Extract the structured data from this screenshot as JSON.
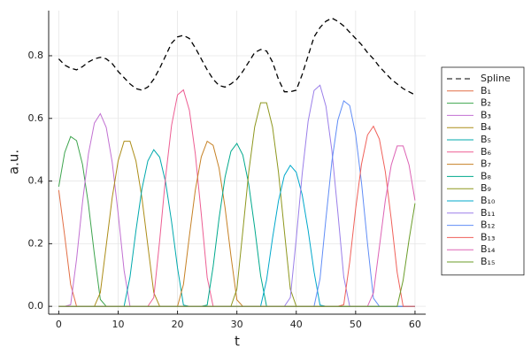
{
  "chart_data": {
    "type": "line",
    "xlabel": "t",
    "ylabel": "a.u.",
    "x": [
      0,
      1,
      2,
      3,
      4,
      5,
      6,
      7,
      8,
      9,
      10,
      11,
      12,
      13,
      14,
      15,
      16,
      17,
      18,
      19,
      20,
      21,
      22,
      23,
      24,
      25,
      26,
      27,
      28,
      29,
      30,
      31,
      32,
      33,
      34,
      35,
      36,
      37,
      38,
      39,
      40,
      41,
      42,
      43,
      44,
      45,
      46,
      47,
      48,
      49,
      50,
      51,
      52,
      53,
      54,
      55,
      56,
      57,
      58,
      59,
      60
    ],
    "xlim": [
      -1.7,
      61.8
    ],
    "xticks": [
      0,
      10,
      20,
      30,
      40,
      50,
      60
    ],
    "ylim": [
      -0.025,
      0.944
    ],
    "yticks": [
      {
        "value": 0,
        "label": "0.0"
      },
      0.2,
      0.4,
      0.6,
      0.8
    ],
    "grid": true,
    "legend": "right",
    "series": [
      {
        "name": "Spline",
        "color": "#000000",
        "style": "dashed",
        "values": [
          0.79,
          0.77,
          0.76,
          0.755,
          0.765,
          0.78,
          0.79,
          0.795,
          0.79,
          0.775,
          0.75,
          0.73,
          0.71,
          0.695,
          0.69,
          0.7,
          0.725,
          0.76,
          0.8,
          0.84,
          0.86,
          0.865,
          0.855,
          0.825,
          0.79,
          0.755,
          0.725,
          0.705,
          0.7,
          0.71,
          0.725,
          0.75,
          0.78,
          0.81,
          0.82,
          0.815,
          0.78,
          0.725,
          0.685,
          0.685,
          0.69,
          0.74,
          0.8,
          0.86,
          0.89,
          0.91,
          0.92,
          0.91,
          0.895,
          0.875,
          0.855,
          0.835,
          0.81,
          0.79,
          0.765,
          0.745,
          0.725,
          0.71,
          0.695,
          0.685,
          0.675
        ]
      },
      {
        "name": "B₁",
        "color": "#e26f46",
        "values": [
          0.371,
          0.225,
          0.07,
          0,
          0,
          0,
          0,
          0,
          0,
          0,
          0,
          0,
          0,
          0,
          0,
          0,
          0,
          0,
          0,
          0,
          0,
          0,
          0,
          0,
          0,
          0,
          0,
          0,
          0,
          0,
          0,
          0,
          0,
          0,
          0,
          0,
          0,
          0,
          0,
          0,
          0,
          0,
          0,
          0,
          0,
          0,
          0,
          0,
          0,
          0,
          0,
          0,
          0,
          0,
          0,
          0,
          0,
          0,
          0,
          0,
          0
        ]
      },
      {
        "name": "B₂",
        "color": "#3da44d",
        "values": [
          0.382,
          0.491,
          0.542,
          0.529,
          0.453,
          0.325,
          0.166,
          0.022,
          0,
          0,
          0,
          0,
          0,
          0,
          0,
          0,
          0,
          0,
          0,
          0,
          0,
          0,
          0,
          0,
          0,
          0,
          0,
          0,
          0,
          0,
          0,
          0,
          0,
          0,
          0,
          0,
          0,
          0,
          0,
          0,
          0,
          0,
          0,
          0,
          0,
          0,
          0,
          0,
          0,
          0,
          0,
          0,
          0,
          0,
          0,
          0,
          0,
          0,
          0,
          0,
          0
        ]
      },
      {
        "name": "B₃",
        "color": "#c271d2",
        "values": [
          0,
          0,
          0.005,
          0.151,
          0.332,
          0.487,
          0.585,
          0.615,
          0.571,
          0.46,
          0.297,
          0.115,
          0,
          0,
          0,
          0,
          0,
          0,
          0,
          0,
          0,
          0,
          0,
          0,
          0,
          0,
          0,
          0,
          0,
          0,
          0,
          0,
          0,
          0,
          0,
          0,
          0,
          0,
          0,
          0,
          0,
          0,
          0,
          0,
          0,
          0,
          0,
          0,
          0,
          0,
          0,
          0,
          0,
          0,
          0,
          0,
          0,
          0,
          0,
          0,
          0
        ]
      },
      {
        "name": "B₄",
        "color": "#ac8d18",
        "values": [
          0,
          0,
          0,
          0,
          0,
          0,
          0,
          0.044,
          0.195,
          0.347,
          0.464,
          0.527,
          0.527,
          0.464,
          0.347,
          0.195,
          0.044,
          0,
          0,
          0,
          0,
          0,
          0,
          0,
          0,
          0,
          0,
          0,
          0,
          0,
          0,
          0,
          0,
          0,
          0,
          0,
          0,
          0,
          0,
          0,
          0,
          0,
          0,
          0,
          0,
          0,
          0,
          0,
          0,
          0,
          0,
          0,
          0,
          0,
          0,
          0,
          0,
          0,
          0,
          0,
          0
        ]
      },
      {
        "name": "B₅",
        "color": "#00a9ad",
        "values": [
          0,
          0,
          0,
          0,
          0,
          0,
          0,
          0,
          0,
          0,
          0,
          0,
          0.094,
          0.242,
          0.374,
          0.464,
          0.5,
          0.476,
          0.396,
          0.27,
          0.123,
          0.004,
          0,
          0,
          0,
          0,
          0,
          0,
          0,
          0,
          0,
          0,
          0,
          0,
          0,
          0,
          0,
          0,
          0,
          0,
          0,
          0,
          0,
          0,
          0,
          0,
          0,
          0,
          0,
          0,
          0,
          0,
          0,
          0,
          0,
          0,
          0,
          0,
          0,
          0,
          0
        ]
      },
      {
        "name": "B₆",
        "color": "#ed5e93",
        "values": [
          0,
          0,
          0,
          0,
          0,
          0,
          0,
          0,
          0,
          0,
          0,
          0,
          0,
          0,
          0,
          0,
          0.028,
          0.211,
          0.414,
          0.578,
          0.675,
          0.691,
          0.626,
          0.487,
          0.295,
          0.092,
          0,
          0,
          0,
          0,
          0,
          0,
          0,
          0,
          0,
          0,
          0,
          0,
          0,
          0,
          0,
          0,
          0,
          0,
          0,
          0,
          0,
          0,
          0,
          0,
          0,
          0,
          0,
          0,
          0,
          0,
          0,
          0,
          0,
          0,
          0
        ]
      },
      {
        "name": "B₇",
        "color": "#c68125",
        "values": [
          0,
          0,
          0,
          0,
          0,
          0,
          0,
          0,
          0,
          0,
          0,
          0,
          0,
          0,
          0,
          0,
          0,
          0,
          0,
          0,
          0,
          0.07,
          0.225,
          0.371,
          0.477,
          0.527,
          0.514,
          0.441,
          0.316,
          0.161,
          0.021,
          0,
          0,
          0,
          0,
          0,
          0,
          0,
          0,
          0,
          0,
          0,
          0,
          0,
          0,
          0,
          0,
          0,
          0,
          0,
          0,
          0,
          0,
          0,
          0,
          0,
          0,
          0,
          0,
          0,
          0
        ]
      },
      {
        "name": "B₈",
        "color": "#00a98d",
        "values": [
          0,
          0,
          0,
          0,
          0,
          0,
          0,
          0,
          0,
          0,
          0,
          0,
          0,
          0,
          0,
          0,
          0,
          0,
          0,
          0,
          0,
          0,
          0,
          0,
          0,
          0.004,
          0.127,
          0.281,
          0.412,
          0.495,
          0.52,
          0.483,
          0.389,
          0.251,
          0.098,
          0,
          0,
          0,
          0,
          0,
          0,
          0,
          0,
          0,
          0,
          0,
          0,
          0,
          0,
          0,
          0,
          0,
          0,
          0,
          0,
          0,
          0,
          0,
          0,
          0,
          0
        ]
      },
      {
        "name": "B₉",
        "color": "#8e971e",
        "values": [
          0,
          0,
          0,
          0,
          0,
          0,
          0,
          0,
          0,
          0,
          0,
          0,
          0,
          0,
          0,
          0,
          0,
          0,
          0,
          0,
          0,
          0,
          0,
          0,
          0,
          0,
          0,
          0,
          0,
          0,
          0.055,
          0.24,
          0.429,
          0.573,
          0.65,
          0.65,
          0.573,
          0.429,
          0.24,
          0.055,
          0,
          0,
          0,
          0,
          0,
          0,
          0,
          0,
          0,
          0,
          0,
          0,
          0,
          0,
          0,
          0,
          0,
          0,
          0,
          0,
          0
        ]
      },
      {
        "name": "B₁₀",
        "color": "#00a8cb",
        "values": [
          0,
          0,
          0,
          0,
          0,
          0,
          0,
          0,
          0,
          0,
          0,
          0,
          0,
          0,
          0,
          0,
          0,
          0,
          0,
          0,
          0,
          0,
          0,
          0,
          0,
          0,
          0,
          0,
          0,
          0,
          0,
          0,
          0,
          0,
          0,
          0.084,
          0.217,
          0.336,
          0.418,
          0.45,
          0.428,
          0.356,
          0.243,
          0.11,
          0.004,
          0,
          0,
          0,
          0,
          0,
          0,
          0,
          0,
          0,
          0,
          0,
          0,
          0,
          0,
          0,
          0
        ]
      },
      {
        "name": "B₁₁",
        "color": "#9b7fe9",
        "values": [
          0,
          0,
          0,
          0,
          0,
          0,
          0,
          0,
          0,
          0,
          0,
          0,
          0,
          0,
          0,
          0,
          0,
          0,
          0,
          0,
          0,
          0,
          0,
          0,
          0,
          0,
          0,
          0,
          0,
          0,
          0,
          0,
          0,
          0,
          0,
          0,
          0,
          0,
          0,
          0.028,
          0.216,
          0.423,
          0.591,
          0.689,
          0.706,
          0.639,
          0.497,
          0.301,
          0.094,
          0,
          0,
          0,
          0,
          0,
          0,
          0,
          0,
          0,
          0,
          0,
          0
        ]
      },
      {
        "name": "B₁₂",
        "color": "#618df6",
        "values": [
          0,
          0,
          0,
          0,
          0,
          0,
          0,
          0,
          0,
          0,
          0,
          0,
          0,
          0,
          0,
          0,
          0,
          0,
          0,
          0,
          0,
          0,
          0,
          0,
          0,
          0,
          0,
          0,
          0,
          0,
          0,
          0,
          0,
          0,
          0,
          0,
          0,
          0,
          0,
          0,
          0,
          0,
          0,
          0,
          0.088,
          0.28,
          0.462,
          0.594,
          0.656,
          0.641,
          0.549,
          0.393,
          0.201,
          0.026,
          0,
          0,
          0,
          0,
          0,
          0,
          0
        ]
      },
      {
        "name": "B₁₃",
        "color": "#f0615a",
        "values": [
          0,
          0,
          0,
          0,
          0,
          0,
          0,
          0,
          0,
          0,
          0,
          0,
          0,
          0,
          0,
          0,
          0,
          0,
          0,
          0,
          0,
          0,
          0,
          0,
          0,
          0,
          0,
          0,
          0,
          0,
          0,
          0,
          0,
          0,
          0,
          0,
          0,
          0,
          0,
          0,
          0,
          0,
          0,
          0,
          0,
          0,
          0,
          0,
          0.005,
          0.141,
          0.311,
          0.455,
          0.547,
          0.575,
          0.534,
          0.43,
          0.278,
          0.108,
          0,
          0,
          0
        ]
      },
      {
        "name": "B₁₄",
        "color": "#dd64b5",
        "values": [
          0,
          0,
          0,
          0,
          0,
          0,
          0,
          0,
          0,
          0,
          0,
          0,
          0,
          0,
          0,
          0,
          0,
          0,
          0,
          0,
          0,
          0,
          0,
          0,
          0,
          0,
          0,
          0,
          0,
          0,
          0,
          0,
          0,
          0,
          0,
          0,
          0,
          0,
          0,
          0,
          0,
          0,
          0,
          0,
          0,
          0,
          0,
          0,
          0,
          0,
          0,
          0,
          0,
          0.043,
          0.189,
          0.338,
          0.451,
          0.512,
          0.512,
          0.451,
          0.338
        ]
      },
      {
        "name": "B₁₅",
        "color": "#6b9d2a",
        "values": [
          0,
          0,
          0,
          0,
          0,
          0,
          0,
          0,
          0,
          0,
          0,
          0,
          0,
          0,
          0,
          0,
          0,
          0,
          0,
          0,
          0,
          0,
          0,
          0,
          0,
          0,
          0,
          0,
          0,
          0,
          0,
          0,
          0,
          0,
          0,
          0,
          0,
          0,
          0,
          0,
          0,
          0,
          0,
          0,
          0,
          0,
          0,
          0,
          0,
          0,
          0,
          0,
          0,
          0,
          0,
          0,
          0,
          0,
          0.083,
          0.213,
          0.329
        ]
      }
    ]
  }
}
